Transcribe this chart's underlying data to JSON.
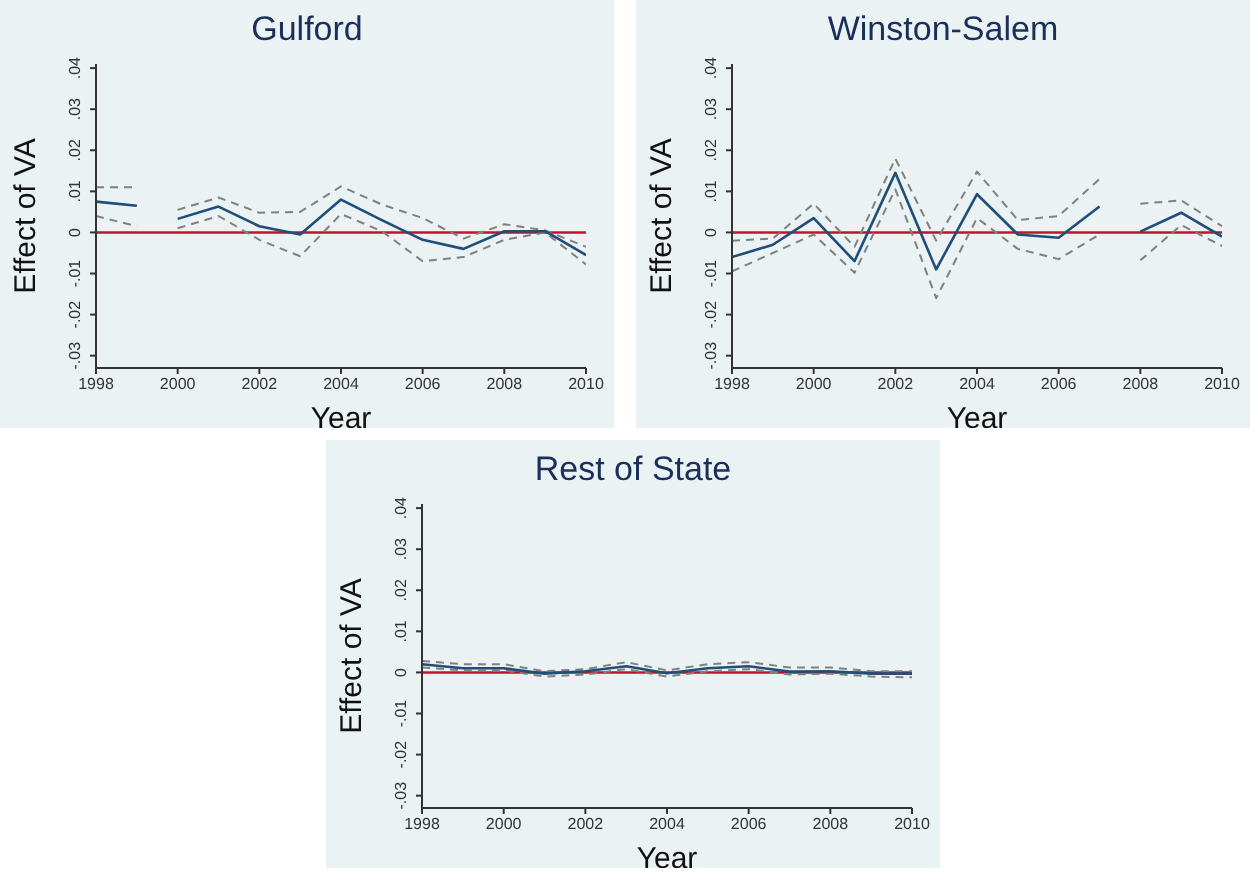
{
  "chart_data": [
    {
      "type": "line",
      "title": "Gulford",
      "xlabel": "Year",
      "ylabel": "Effect of VA",
      "x": [
        1998,
        1999,
        1999.5,
        2000,
        2001,
        2002,
        2003,
        2004,
        2005,
        2006,
        2007,
        2008,
        2009,
        2010
      ],
      "xlim": [
        1998,
        2010
      ],
      "xticks": [
        1998,
        2000,
        2002,
        2004,
        2006,
        2008,
        2010
      ],
      "ylim": [
        -0.033,
        0.041
      ],
      "yticks": [
        {
          "value": -0.03,
          "label": "-.03"
        },
        {
          "value": -0.02,
          "label": "-.02"
        },
        {
          "value": -0.01,
          "label": "-.01"
        },
        {
          "value": 0,
          "label": "0"
        },
        {
          "value": 0.01,
          "label": ".01"
        },
        {
          "value": 0.02,
          "label": ".02"
        },
        {
          "value": 0.03,
          "label": ".03"
        },
        {
          "value": 0.04,
          "label": ".04"
        }
      ],
      "series": [
        {
          "color": "#808080",
          "line_style": "dashed",
          "values": [
            0.011,
            0.011,
            null,
            0.0055,
            0.0085,
            0.0048,
            0.005,
            0.0112,
            0.0068,
            0.0035,
            -0.0015,
            0.002,
            0.0005,
            -0.0035
          ]
        },
        {
          "color": "#808080",
          "line_style": "dashed",
          "values": [
            0.004,
            0.0015,
            null,
            0.001,
            0.004,
            -0.0018,
            -0.0058,
            0.0045,
            0.0003,
            -0.007,
            -0.006,
            -0.0018,
            0,
            -0.0078
          ]
        },
        {
          "color": "#1f4e79",
          "line_style": "solid",
          "values": [
            0.0075,
            0.0065,
            null,
            0.0033,
            0.0063,
            0.0015,
            -0.0005,
            0.008,
            0.003,
            -0.0018,
            -0.004,
            0.0003,
            0.0003,
            -0.0055
          ]
        }
      ],
      "ref_lines": [
        {
          "axis": "y",
          "value": 0,
          "color": "#c8102e"
        }
      ]
    },
    {
      "type": "line",
      "title": "Winston-Salem",
      "xlabel": "Year",
      "ylabel": "Effect of VA",
      "x": [
        1998,
        1999,
        2000,
        2001,
        2002,
        2003,
        2004,
        2005,
        2006,
        2007,
        2007.5,
        2008,
        2009,
        2010
      ],
      "xlim": [
        1998,
        2010
      ],
      "xticks": [
        1998,
        2000,
        2002,
        2004,
        2006,
        2008,
        2010
      ],
      "ylim": [
        -0.033,
        0.041
      ],
      "yticks": [
        {
          "value": -0.03,
          "label": "-.03"
        },
        {
          "value": -0.02,
          "label": "-.02"
        },
        {
          "value": -0.01,
          "label": "-.01"
        },
        {
          "value": 0,
          "label": "0"
        },
        {
          "value": 0.01,
          "label": ".01"
        },
        {
          "value": 0.02,
          "label": ".02"
        },
        {
          "value": 0.03,
          "label": ".03"
        },
        {
          "value": 0.04,
          "label": ".04"
        }
      ],
      "series": [
        {
          "color": "#808080",
          "line_style": "dashed",
          "values": [
            -0.002,
            -0.0015,
            0.007,
            -0.0035,
            0.018,
            -0.002,
            0.0148,
            0.003,
            0.004,
            0.013,
            null,
            0.007,
            0.0078,
            0.0015
          ]
        },
        {
          "color": "#808080",
          "line_style": "dashed",
          "values": [
            -0.0095,
            -0.005,
            -0.0005,
            -0.0098,
            0.0105,
            -0.016,
            0.0035,
            -0.004,
            -0.0065,
            -0.0005,
            null,
            -0.0068,
            0.0018,
            -0.0033
          ]
        },
        {
          "color": "#1f4e79",
          "line_style": "solid",
          "values": [
            -0.006,
            -0.003,
            0.0035,
            -0.007,
            0.0145,
            -0.009,
            0.0093,
            -0.0005,
            -0.0013,
            0.0063,
            null,
            0.0002,
            0.0048,
            -0.001
          ]
        }
      ],
      "ref_lines": [
        {
          "axis": "y",
          "value": 0,
          "color": "#c8102e"
        }
      ]
    },
    {
      "type": "line",
      "title": "Rest of State",
      "xlabel": "Year",
      "ylabel": "Effect of VA",
      "x": [
        1998,
        1999,
        2000,
        2001,
        2002,
        2003,
        2004,
        2005,
        2006,
        2007,
        2008,
        2009,
        2010
      ],
      "xlim": [
        1998,
        2010
      ],
      "xticks": [
        1998,
        2000,
        2002,
        2004,
        2006,
        2008,
        2010
      ],
      "ylim": [
        -0.033,
        0.041
      ],
      "yticks": [
        {
          "value": -0.03,
          "label": "-.03"
        },
        {
          "value": -0.02,
          "label": "-.02"
        },
        {
          "value": -0.01,
          "label": "-.01"
        },
        {
          "value": 0,
          "label": "0"
        },
        {
          "value": 0.01,
          "label": ".01"
        },
        {
          "value": 0.02,
          "label": ".02"
        },
        {
          "value": 0.03,
          "label": ".03"
        },
        {
          "value": 0.04,
          "label": ".04"
        }
      ],
      "series": [
        {
          "color": "#808080",
          "line_style": "dashed",
          "values": [
            0.0028,
            0.002,
            0.002,
            0.0003,
            0.0008,
            0.0025,
            0.0005,
            0.002,
            0.0025,
            0.0012,
            0.0012,
            0.0003,
            0.0003
          ]
        },
        {
          "color": "#808080",
          "line_style": "dashed",
          "values": [
            0.0012,
            0.0005,
            0.0005,
            -0.001,
            -0.0005,
            0.0008,
            -0.001,
            0.0003,
            0.0008,
            -0.0005,
            -0.0003,
            -0.001,
            -0.0012
          ]
        },
        {
          "color": "#1f4e79",
          "line_style": "solid",
          "values": [
            0.002,
            0.001,
            0.001,
            -0.0003,
            0.0003,
            0.0015,
            -0.0002,
            0.001,
            0.0015,
            0.0002,
            0.0003,
            -0.0003,
            -0.0003
          ]
        }
      ],
      "ref_lines": [
        {
          "axis": "y",
          "value": 0,
          "color": "#c8102e"
        }
      ]
    }
  ]
}
